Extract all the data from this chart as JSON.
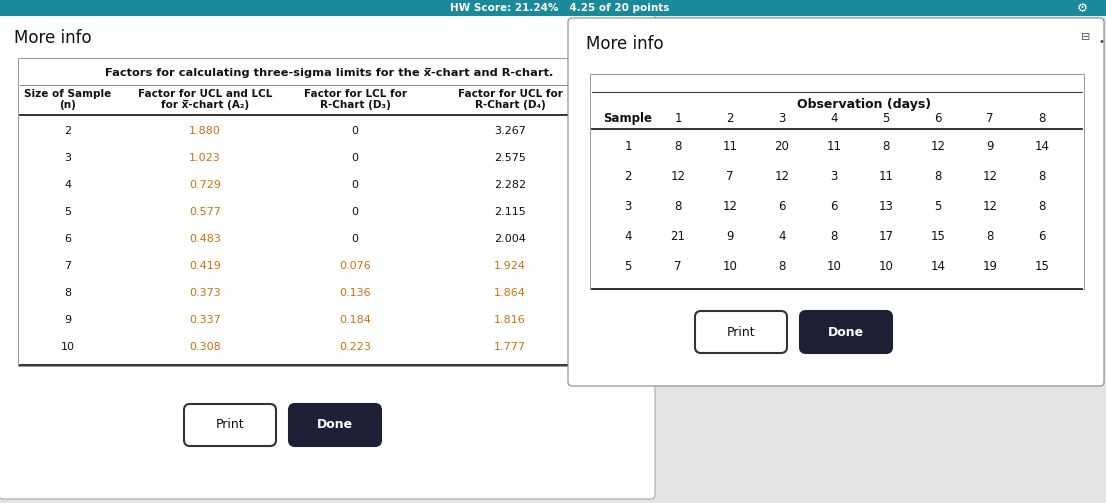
{
  "title1": "More info",
  "title2": "More info",
  "header_bar_color": "#1a8a9a",
  "hw_score_text": "HW Score: 21.24%   4.25 of 20 points",
  "orange_color": "#d4700a",
  "table1_title": "Factors for calculating three-sigma limits for the x̅-chart and R-chart.",
  "table1_col_headers_l1": [
    "Size of Sample",
    "Factor for UCL and LCL",
    "Factor for LCL for",
    "Factor for UCL for"
  ],
  "table1_col_headers_l2": [
    "(n)",
    "for x̅-chart (A₂)",
    "R-Chart (D₃)",
    "R-Chart (D₄)"
  ],
  "table1_data": [
    [
      "2",
      "1.880",
      "0",
      "3.267"
    ],
    [
      "3",
      "1.023",
      "0",
      "2.575"
    ],
    [
      "4",
      "0.729",
      "0",
      "2.282"
    ],
    [
      "5",
      "0.577",
      "0",
      "2.115"
    ],
    [
      "6",
      "0.483",
      "0",
      "2.004"
    ],
    [
      "7",
      "0.419",
      "0.076",
      "1.924"
    ],
    [
      "8",
      "0.373",
      "0.136",
      "1.864"
    ],
    [
      "9",
      "0.337",
      "0.184",
      "1.816"
    ],
    [
      "10",
      "0.308",
      "0.223",
      "1.777"
    ]
  ],
  "table2_col_headers": [
    "Sample",
    "1",
    "2",
    "3",
    "4",
    "5",
    "6",
    "7",
    "8"
  ],
  "table2_data": [
    [
      "1",
      "8",
      "11",
      "20",
      "11",
      "8",
      "12",
      "9",
      "14"
    ],
    [
      "2",
      "12",
      "7",
      "12",
      "3",
      "11",
      "8",
      "12",
      "8"
    ],
    [
      "3",
      "8",
      "12",
      "6",
      "6",
      "13",
      "5",
      "12",
      "8"
    ],
    [
      "4",
      "21",
      "9",
      "4",
      "8",
      "17",
      "15",
      "8",
      "6"
    ],
    [
      "5",
      "7",
      "10",
      "8",
      "10",
      "10",
      "14",
      "19",
      "15"
    ]
  ],
  "bg_page": "#e4e4e4",
  "bg_white": "#ffffff",
  "text_dark": "#111111",
  "done_btn_color": "#1e2035"
}
